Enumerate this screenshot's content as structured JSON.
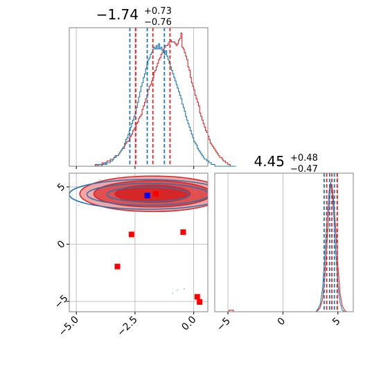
{
  "chart_data": [
    {
      "type": "histogram",
      "panel": "marginal-param1",
      "title": {
        "median": "−1.74",
        "plus": "+0.73",
        "minus": "−0.76"
      },
      "xlim": [
        -5.3,
        0.6
      ],
      "grid": true,
      "series": [
        {
          "color": "#d62728",
          "bin_start": -5.3,
          "bin_width": 0.05,
          "counts": [
            0,
            0,
            0,
            0,
            0,
            0,
            0,
            0,
            0,
            0,
            0,
            0,
            0,
            0,
            0,
            0,
            0,
            0,
            0,
            0,
            0,
            0,
            1,
            1,
            0,
            1,
            1,
            1,
            2,
            1,
            2,
            2,
            3,
            3,
            3,
            4,
            4,
            4,
            5,
            6,
            6,
            6,
            7,
            8,
            9,
            10,
            10,
            12,
            13,
            14,
            14,
            16,
            17,
            18,
            20,
            21,
            22,
            24,
            25,
            27,
            28,
            29,
            32,
            34,
            36,
            38,
            40,
            43,
            45,
            46,
            48,
            50,
            53,
            54,
            56,
            58,
            60,
            61,
            63,
            64,
            66,
            67,
            68,
            68,
            69,
            70,
            71,
            70,
            70,
            70,
            69,
            68,
            69,
            71,
            72,
            75,
            67,
            66,
            64,
            62,
            60,
            56,
            54,
            50,
            47,
            45,
            43,
            40,
            38,
            36,
            34,
            30,
            28,
            26,
            24,
            22,
            20,
            19,
            17,
            15,
            13,
            12,
            11,
            10,
            9,
            8,
            7,
            6,
            5,
            5,
            4,
            3,
            3,
            2,
            2,
            1,
            1,
            0
          ]
        },
        {
          "color": "#1f77b4",
          "bin_start": -5.3,
          "bin_width": 0.05,
          "counts": [
            0,
            0,
            0,
            0,
            0,
            0,
            0,
            0,
            0,
            0,
            0,
            0,
            0,
            0,
            0,
            0,
            0,
            0,
            0,
            0,
            0,
            0,
            0,
            1,
            1,
            1,
            1,
            0,
            1,
            1,
            2,
            1,
            2,
            2,
            2,
            3,
            3,
            4,
            5,
            5,
            6,
            6,
            7,
            8,
            9,
            10,
            11,
            13,
            15,
            16,
            18,
            20,
            22,
            24,
            26,
            28,
            30,
            33,
            36,
            39,
            42,
            45,
            47,
            50,
            52,
            55,
            57,
            60,
            61,
            63,
            64,
            66,
            67,
            66,
            68,
            66,
            69,
            66,
            67,
            65,
            64,
            63,
            65,
            62,
            60,
            58,
            56,
            54,
            52,
            50,
            48,
            46,
            44,
            42,
            40,
            38,
            35,
            33,
            31,
            28,
            26,
            24,
            22,
            20,
            18,
            16,
            14,
            13,
            12,
            10,
            9,
            8,
            7,
            6,
            5,
            4,
            4,
            3,
            3,
            2,
            2,
            1,
            1,
            1,
            0,
            0,
            0,
            0,
            0,
            0,
            0,
            0,
            0,
            0,
            0,
            0,
            0,
            0,
            0,
            0,
            0,
            0
          ]
        }
      ],
      "quantile_lines": [
        {
          "color": "#d62728",
          "x": [
            -2.47,
            -1.74,
            -1.01
          ]
        },
        {
          "color": "#1f77b4",
          "x": [
            -2.72,
            -1.98,
            -1.25
          ]
        }
      ]
    },
    {
      "type": "histogram",
      "panel": "marginal-param2",
      "title": {
        "median": "4.45",
        "plus": "+0.48",
        "minus": "−0.47"
      },
      "xlim": [
        -6.2,
        6.4
      ],
      "xticks": [
        -5,
        0,
        5
      ],
      "xtick_labels": [
        "−5",
        "0",
        "5"
      ],
      "grid": true,
      "series": [
        {
          "color": "#d62728",
          "points": [
            [
              -6.2,
              0
            ],
            [
              -4.9,
              0
            ],
            [
              -4.9,
              1
            ],
            [
              -4.5,
              1
            ],
            [
              -4.5,
              0
            ],
            [
              3.0,
              0
            ],
            [
              3.2,
              1
            ],
            [
              3.4,
              3
            ],
            [
              3.6,
              8
            ],
            [
              3.8,
              22
            ],
            [
              4.0,
              45
            ],
            [
              4.2,
              70
            ],
            [
              4.35,
              85
            ],
            [
              4.5,
              82
            ],
            [
              4.65,
              70
            ],
            [
              4.8,
              55
            ],
            [
              5.0,
              30
            ],
            [
              5.2,
              12
            ],
            [
              5.4,
              4
            ],
            [
              5.6,
              1
            ],
            [
              5.8,
              0
            ],
            [
              6.4,
              0
            ]
          ]
        },
        {
          "color": "#1f77b4",
          "points": [
            [
              -6.2,
              0
            ],
            [
              3.0,
              0
            ],
            [
              3.2,
              2
            ],
            [
              3.4,
              5
            ],
            [
              3.6,
              15
            ],
            [
              3.8,
              35
            ],
            [
              4.0,
              60
            ],
            [
              4.2,
              80
            ],
            [
              4.35,
              86
            ],
            [
              4.5,
              78
            ],
            [
              4.65,
              62
            ],
            [
              4.8,
              40
            ],
            [
              5.0,
              18
            ],
            [
              5.2,
              6
            ],
            [
              5.4,
              1
            ],
            [
              5.6,
              0
            ],
            [
              6.4,
              0
            ]
          ]
        }
      ],
      "quantile_lines": [
        {
          "color": "#d62728",
          "x": [
            3.98,
            4.45,
            4.93
          ]
        },
        {
          "color": "#1f77b4",
          "x": [
            3.75,
            4.25,
            4.68
          ]
        }
      ]
    },
    {
      "type": "contour",
      "panel": "joint",
      "xlim": [
        -5.3,
        0.6
      ],
      "ylim": [
        -5.9,
        6.2
      ],
      "xticks": [
        -5.0,
        -2.5,
        0.0
      ],
      "xtick_labels": [
        "−5.0",
        "−2.5",
        "0.0"
      ],
      "yticks": [
        -5,
        0,
        5
      ],
      "ytick_labels": [
        "−5",
        "0",
        "5"
      ],
      "grid": true,
      "blue_contours": [
        {
          "cx": -1.95,
          "cy": 4.35,
          "rx": 3.35,
          "ry": 1.3,
          "fill": false
        },
        {
          "cx": -1.95,
          "cy": 4.35,
          "rx": 2.6,
          "ry": 0.95,
          "fill": false
        },
        {
          "cx": -1.95,
          "cy": 4.35,
          "rx": 1.75,
          "ry": 0.65,
          "fill": false
        }
      ],
      "red_contours": [
        {
          "cx": -1.75,
          "cy": 4.4,
          "rx": 3.1,
          "ry": 1.55,
          "fill": "#f4a6a6"
        },
        {
          "cx": -1.75,
          "cy": 4.4,
          "rx": 2.5,
          "ry": 1.15,
          "fill": "#e05050"
        },
        {
          "cx": -1.75,
          "cy": 4.4,
          "rx": 1.6,
          "ry": 0.75,
          "fill": "#d62728"
        }
      ],
      "scatter_blue": [
        [
          -4.5,
          4.7
        ],
        [
          -4.4,
          3.6
        ],
        [
          -4.2,
          3.4
        ],
        [
          0.15,
          4.3
        ],
        [
          -4.6,
          3.8
        ],
        [
          0.0,
          4.8
        ],
        [
          -0.7,
          -4.0
        ],
        [
          -0.4,
          -3.9
        ],
        [
          -0.9,
          -4.3
        ],
        [
          -4.9,
          3.4
        ],
        [
          -4.0,
          5.6
        ],
        [
          0.1,
          5.1
        ]
      ],
      "scatter_pink": [
        [
          -3.7,
          3.3
        ],
        [
          -3.2,
          5.9
        ],
        [
          -1.0,
          3.0
        ],
        [
          -0.3,
          3.3
        ],
        [
          -2.6,
          3.0
        ],
        [
          -1.5,
          6.0
        ],
        [
          -4.2,
          5.3
        ],
        [
          -0.8,
          5.8
        ]
      ],
      "markers": [
        {
          "color": "#ff0000",
          "x": -1.6,
          "y": 4.4
        },
        {
          "color": "#0000ff",
          "x": -1.98,
          "y": 4.25
        },
        {
          "color": "#ff0000",
          "x": -2.65,
          "y": 0.85
        },
        {
          "color": "#ff0000",
          "x": -0.45,
          "y": 1.05
        },
        {
          "color": "#ff0000",
          "x": -3.25,
          "y": -1.95
        },
        {
          "color": "#ff0000",
          "x": 0.15,
          "y": -4.6
        },
        {
          "color": "#ff0000",
          "x": 0.25,
          "y": -5.05
        }
      ]
    }
  ]
}
